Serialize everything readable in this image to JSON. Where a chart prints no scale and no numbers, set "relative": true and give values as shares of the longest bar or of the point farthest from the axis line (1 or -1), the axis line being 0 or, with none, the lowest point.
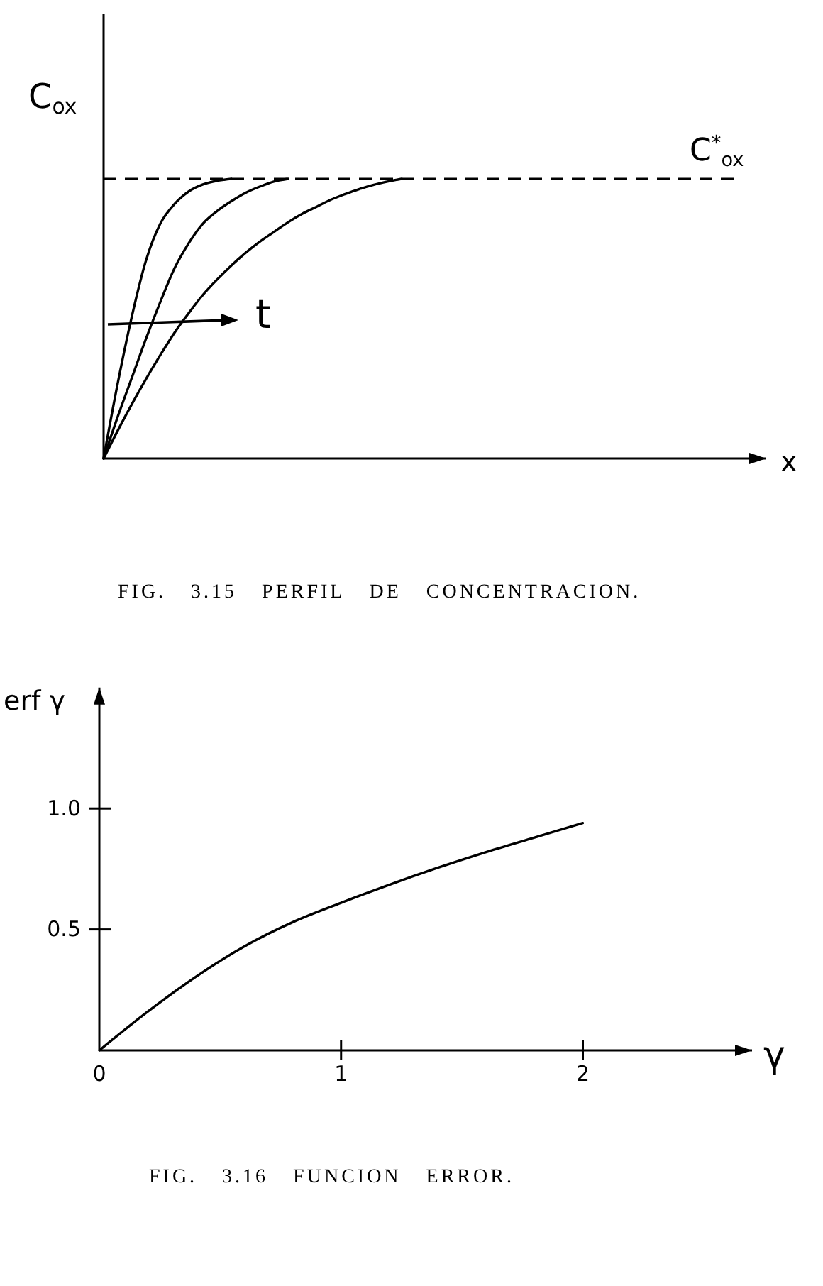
{
  "chart_data": [
    {
      "type": "line",
      "title": "FIG. 3.15 PERFIL DE CONCENTRACION.",
      "xlabel": "x",
      "ylabel": "C$_{ox}$",
      "relative": true,
      "categories": [
        null,
        null,
        null,
        null,
        null,
        null,
        null,
        null,
        null,
        null,
        null,
        null,
        null,
        null,
        null,
        null,
        null,
        null,
        null,
        null,
        null,
        null,
        null,
        null,
        null,
        null,
        null,
        null,
        null,
        null,
        null,
        null,
        null,
        null,
        null,
        null,
        null,
        null,
        null,
        null,
        null,
        null,
        null,
        null,
        null
      ],
      "series": [
        {
          "color": "#000000",
          "values": [
            0,
            0.27,
            0.51,
            0.71,
            0.84,
            0.91,
            0.955,
            0.98,
            0.993,
            1.0,
            null,
            null,
            null,
            null,
            null,
            null,
            null,
            null,
            null,
            null,
            null,
            null,
            null,
            null,
            null,
            null,
            null,
            null,
            null,
            null,
            null,
            null,
            null,
            null,
            null,
            null,
            null,
            null,
            null,
            null,
            null,
            null,
            null,
            null,
            null
          ]
        },
        {
          "color": "#000000",
          "values": [
            0,
            0.15,
            0.29,
            0.43,
            0.56,
            0.68,
            0.77,
            0.84,
            0.885,
            0.92,
            0.95,
            0.972,
            0.99,
            1.0,
            null,
            null,
            null,
            null,
            null,
            null,
            null,
            null,
            null,
            null,
            null,
            null,
            null,
            null,
            null,
            null,
            null,
            null,
            null,
            null,
            null,
            null,
            null,
            null,
            null,
            null,
            null,
            null,
            null,
            null,
            null
          ]
        },
        {
          "color": "#000000",
          "values": [
            0,
            0.1,
            0.195,
            0.285,
            0.37,
            0.45,
            0.52,
            0.585,
            0.64,
            0.69,
            0.735,
            0.775,
            0.81,
            0.845,
            0.875,
            0.9,
            0.925,
            0.945,
            0.963,
            0.978,
            0.99,
            1.0,
            null,
            null,
            null,
            null,
            null,
            null,
            null,
            null,
            null,
            null,
            null,
            null,
            null,
            null,
            null,
            null,
            null,
            null,
            null,
            null,
            null,
            null,
            null
          ]
        }
      ],
      "ref_lines": [
        {
          "axis": "y",
          "value": 1,
          "label": "C$^{*}$$_{ox}$",
          "color": "#000000",
          "line_style": "dashed"
        }
      ],
      "annotations": [
        "t"
      ]
    },
    {
      "type": "line",
      "title": "FIG. 3.16 FUNCION ERROR.",
      "xlabel": "γ",
      "ylabel": "erf γ",
      "x": [
        0,
        0.2,
        0.4,
        0.6,
        0.8,
        1.0,
        1.2,
        1.4,
        1.6,
        1.8,
        2.0
      ],
      "values": [
        0,
        0.16,
        0.305,
        0.43,
        0.53,
        0.61,
        0.685,
        0.755,
        0.82,
        0.88,
        0.94
      ],
      "color": "#000000",
      "xlim": [
        0,
        2.7
      ],
      "ylim": [
        0,
        1.5
      ],
      "xticks": [
        0,
        1,
        2
      ],
      "yticks": [
        0.5,
        {
          "value": 1,
          "label": "1.0"
        }
      ]
    }
  ]
}
